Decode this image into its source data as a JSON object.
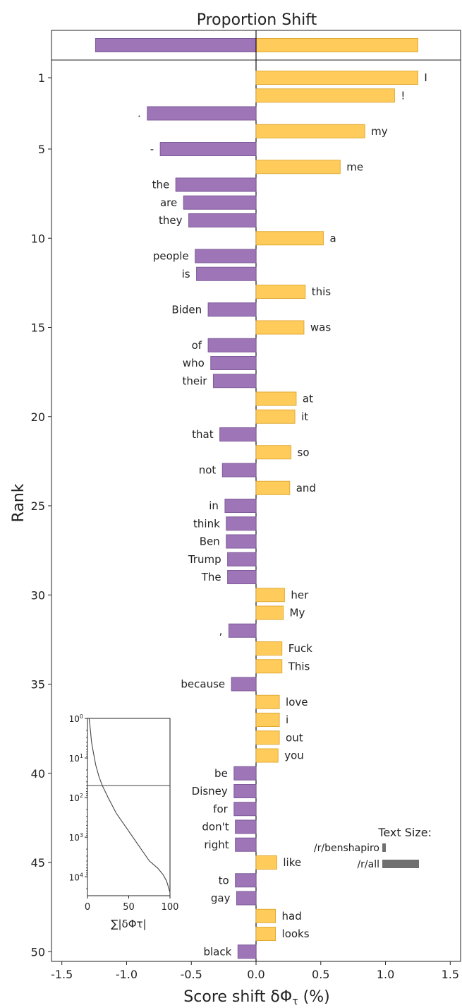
{
  "chart_data": {
    "type": "bar",
    "orientation": "horizontal",
    "title": "Proportion Shift",
    "xlabel": "Score shift δΦτ (%)",
    "ylabel": "Rank",
    "xlim": [
      -1.58,
      1.58
    ],
    "xticks": [
      -1.5,
      -1.0,
      -0.5,
      0.0,
      0.5,
      1.0,
      1.5
    ],
    "xtick_labels": [
      "-1.5",
      "-1.0",
      "-0.5",
      "0.0",
      "0.5",
      "1.0",
      "1.5"
    ],
    "yticks": [
      1,
      5,
      10,
      15,
      20,
      25,
      30,
      35,
      40,
      45,
      50
    ],
    "yticks_labels": [
      "1",
      "5",
      "10",
      "15",
      "20",
      "25",
      "30",
      "35",
      "40",
      "45",
      "50"
    ],
    "colors": {
      "positive": "#FFCC5C",
      "positive_edge": "#E0AA33",
      "negative": "#9E76B8",
      "negative_edge": "#7E5A99"
    },
    "summary": {
      "negative": -1.24,
      "positive": 1.25
    },
    "bars": [
      {
        "rank": 1,
        "word": "I",
        "value": 1.25
      },
      {
        "rank": 2,
        "word": "!",
        "value": 1.07
      },
      {
        "rank": 3,
        "word": ".",
        "value": -0.84
      },
      {
        "rank": 4,
        "word": "my",
        "value": 0.84
      },
      {
        "rank": 5,
        "word": "-",
        "value": -0.74
      },
      {
        "rank": 6,
        "word": "me",
        "value": 0.65
      },
      {
        "rank": 7,
        "word": "the",
        "value": -0.62
      },
      {
        "rank": 8,
        "word": "are",
        "value": -0.56
      },
      {
        "rank": 9,
        "word": "they",
        "value": -0.52
      },
      {
        "rank": 10,
        "word": "a",
        "value": 0.52
      },
      {
        "rank": 11,
        "word": "people",
        "value": -0.47
      },
      {
        "rank": 12,
        "word": "is",
        "value": -0.46
      },
      {
        "rank": 13,
        "word": "this",
        "value": 0.38
      },
      {
        "rank": 14,
        "word": "Biden",
        "value": -0.37
      },
      {
        "rank": 15,
        "word": "was",
        "value": 0.37
      },
      {
        "rank": 16,
        "word": "of",
        "value": -0.37
      },
      {
        "rank": 17,
        "word": "who",
        "value": -0.35
      },
      {
        "rank": 18,
        "word": "their",
        "value": -0.33
      },
      {
        "rank": 19,
        "word": "at",
        "value": 0.31
      },
      {
        "rank": 20,
        "word": "it",
        "value": 0.3
      },
      {
        "rank": 21,
        "word": "that",
        "value": -0.28
      },
      {
        "rank": 22,
        "word": "so",
        "value": 0.27
      },
      {
        "rank": 23,
        "word": "not",
        "value": -0.26
      },
      {
        "rank": 24,
        "word": "and",
        "value": 0.26
      },
      {
        "rank": 25,
        "word": "in",
        "value": -0.24
      },
      {
        "rank": 26,
        "word": "think",
        "value": -0.23
      },
      {
        "rank": 27,
        "word": "Ben",
        "value": -0.23
      },
      {
        "rank": 28,
        "word": "Trump",
        "value": -0.22
      },
      {
        "rank": 29,
        "word": "The",
        "value": -0.22
      },
      {
        "rank": 30,
        "word": "her",
        "value": 0.22
      },
      {
        "rank": 31,
        "word": "My",
        "value": 0.21
      },
      {
        "rank": 32,
        "word": ",",
        "value": -0.21
      },
      {
        "rank": 33,
        "word": "Fuck",
        "value": 0.2
      },
      {
        "rank": 34,
        "word": "This",
        "value": 0.2
      },
      {
        "rank": 35,
        "word": "because",
        "value": -0.19
      },
      {
        "rank": 36,
        "word": "love",
        "value": 0.18
      },
      {
        "rank": 37,
        "word": "i",
        "value": 0.18
      },
      {
        "rank": 38,
        "word": "out",
        "value": 0.18
      },
      {
        "rank": 39,
        "word": "you",
        "value": 0.17
      },
      {
        "rank": 40,
        "word": "be",
        "value": -0.17
      },
      {
        "rank": 41,
        "word": "Disney",
        "value": -0.17
      },
      {
        "rank": 42,
        "word": "for",
        "value": -0.17
      },
      {
        "rank": 43,
        "word": "don't",
        "value": -0.16
      },
      {
        "rank": 44,
        "word": "right",
        "value": -0.16
      },
      {
        "rank": 45,
        "word": "like",
        "value": 0.16
      },
      {
        "rank": 46,
        "word": "to",
        "value": -0.16
      },
      {
        "rank": 47,
        "word": "gay",
        "value": -0.15
      },
      {
        "rank": 48,
        "word": "had",
        "value": 0.15
      },
      {
        "rank": 49,
        "word": "looks",
        "value": 0.15
      },
      {
        "rank": 50,
        "word": "black",
        "value": -0.14
      }
    ],
    "text_size_legend": {
      "title": "Text Size:",
      "items": [
        {
          "label": "/r/benshapiro",
          "value": 4
        },
        {
          "label": "/r/all",
          "value": 50
        }
      ]
    },
    "inset": {
      "type": "line",
      "xlabel": "∑|δΦτ|",
      "xlim": [
        0,
        100
      ],
      "xticks": [
        0,
        50,
        100
      ],
      "y_scale": "log",
      "y_inverted": true,
      "ylim": [
        1,
        30000
      ],
      "ytick_labels": [
        {
          "value": 1,
          "base": "10",
          "exp": "0"
        },
        {
          "value": 10,
          "base": "10",
          "exp": "1"
        },
        {
          "value": 100,
          "base": "10",
          "exp": "2"
        },
        {
          "value": 1000,
          "base": "10",
          "exp": "3"
        },
        {
          "value": 10000,
          "base": "10",
          "exp": "4"
        }
      ],
      "hline": 50,
      "curve": [
        [
          2,
          1
        ],
        [
          3,
          1.5
        ],
        [
          4,
          2.5
        ],
        [
          5,
          4
        ],
        [
          7,
          7
        ],
        [
          10,
          15
        ],
        [
          14,
          30
        ],
        [
          18,
          50
        ],
        [
          25,
          100
        ],
        [
          35,
          250
        ],
        [
          45,
          500
        ],
        [
          55,
          1000
        ],
        [
          65,
          2000
        ],
        [
          75,
          4000
        ],
        [
          85,
          6000
        ],
        [
          92,
          9000
        ],
        [
          96,
          13000
        ],
        [
          98,
          18000
        ],
        [
          100,
          25000
        ]
      ]
    }
  }
}
